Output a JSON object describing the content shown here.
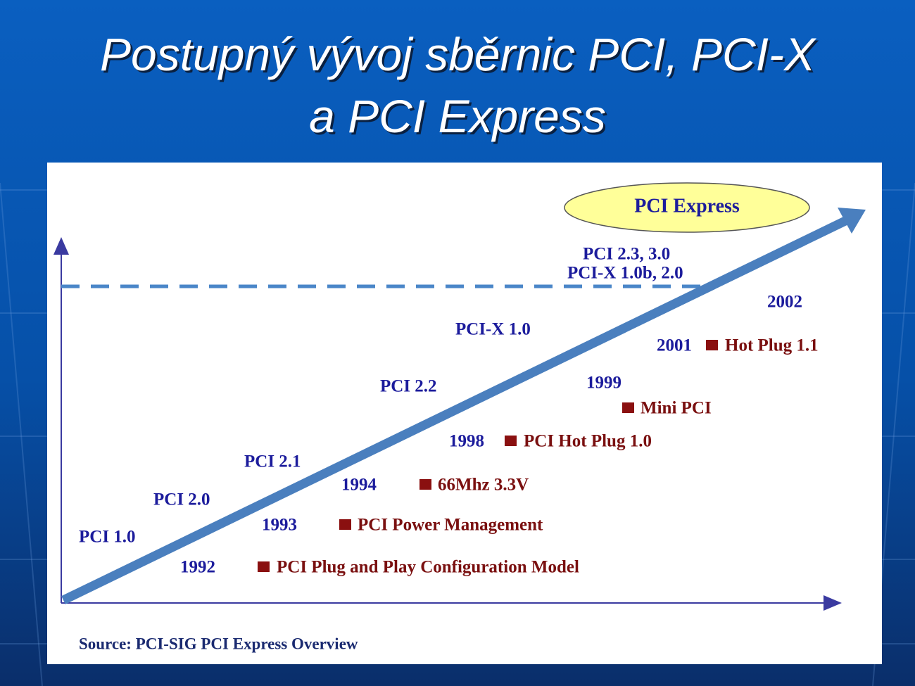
{
  "title": {
    "lines": [
      "Postupný vývoj sběrnic PCI, PCI-X",
      "a PCI Express"
    ]
  },
  "diagram": {
    "highlight": "PCI Express",
    "versions": [
      "PCI 1.0",
      "PCI 2.0",
      "PCI 2.1",
      "PCI 2.2",
      "PCI-X 1.0",
      "PCI 2.3, 3.0",
      "PCI-X 1.0b, 2.0"
    ],
    "years": [
      "1992",
      "1993",
      "1994",
      "1998",
      "1999",
      "2001",
      "2002"
    ],
    "features": [
      "PCI Plug and Play Configuration Model",
      "PCI Power Management",
      "66Mhz 3.3V",
      "PCI Hot Plug 1.0",
      "Mini PCI",
      "Hot Plug 1.1"
    ],
    "source": "Source: PCI-SIG PCI Express Overview"
  }
}
